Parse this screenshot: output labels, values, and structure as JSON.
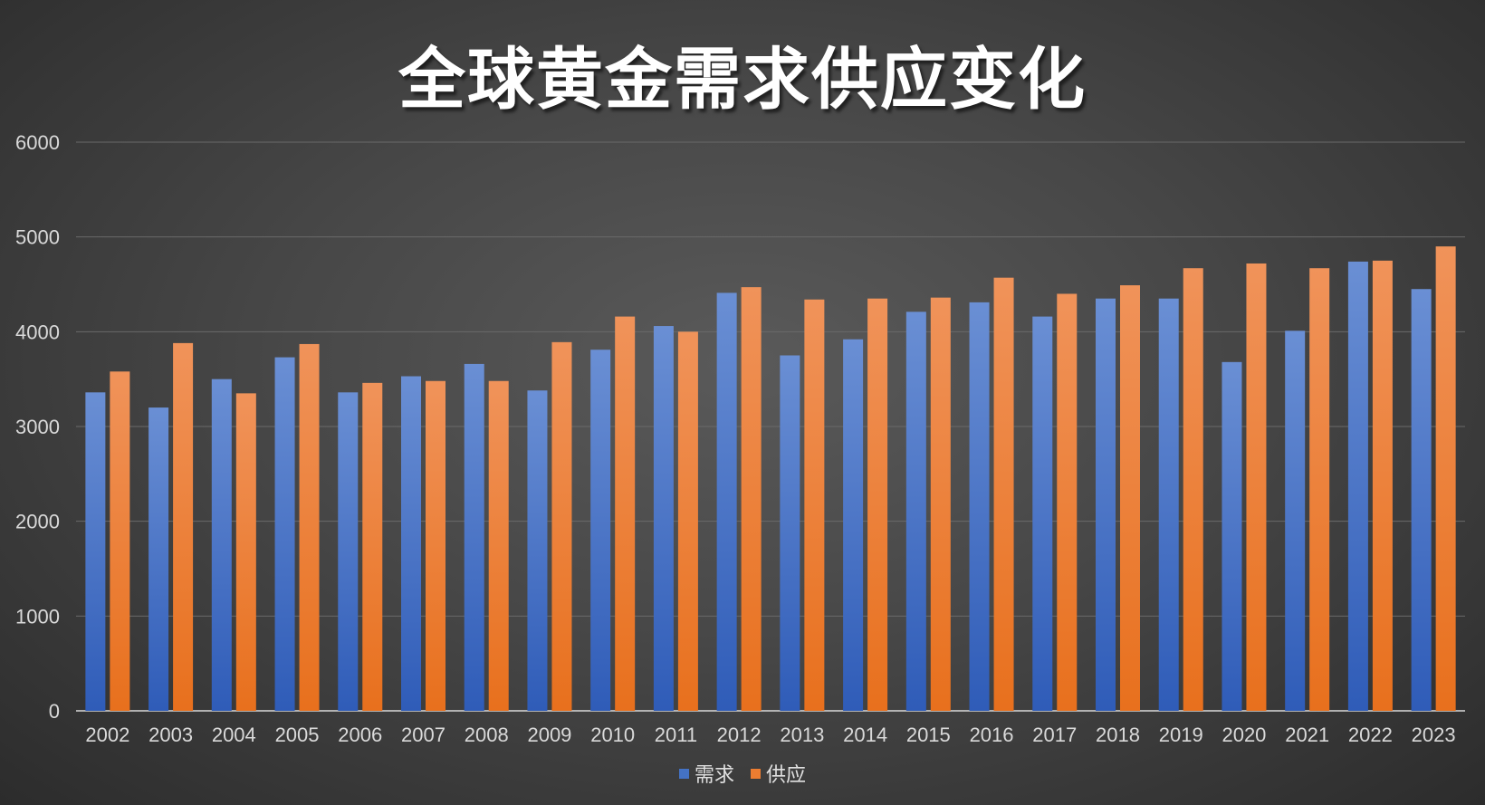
{
  "chart_data": {
    "type": "bar",
    "title": "全球黄金需求供应变化",
    "categories": [
      "2002",
      "2003",
      "2004",
      "2005",
      "2006",
      "2007",
      "2008",
      "2009",
      "2010",
      "2011",
      "2012",
      "2013",
      "2014",
      "2015",
      "2016",
      "2017",
      "2018",
      "2019",
      "2020",
      "2021",
      "2022",
      "2023"
    ],
    "series": [
      {
        "name": "需求",
        "color": "#4472c4",
        "values": [
          3360,
          3200,
          3500,
          3730,
          3360,
          3530,
          3660,
          3380,
          3810,
          4060,
          4410,
          3750,
          3920,
          4210,
          4310,
          4160,
          4350,
          4350,
          3680,
          4010,
          4740,
          4450
        ]
      },
      {
        "name": "供应",
        "color": "#ed7d31",
        "values": [
          3580,
          3880,
          3350,
          3870,
          3460,
          3480,
          3480,
          3890,
          4160,
          4000,
          4470,
          4340,
          4350,
          4360,
          4570,
          4400,
          4490,
          4670,
          4720,
          4670,
          4750,
          4900
        ]
      }
    ],
    "yticks": [
      "0",
      "1000",
      "2000",
      "3000",
      "4000",
      "5000",
      "6000"
    ],
    "ylim": [
      0,
      6000
    ],
    "grid": true,
    "legend_position": "bottom"
  }
}
